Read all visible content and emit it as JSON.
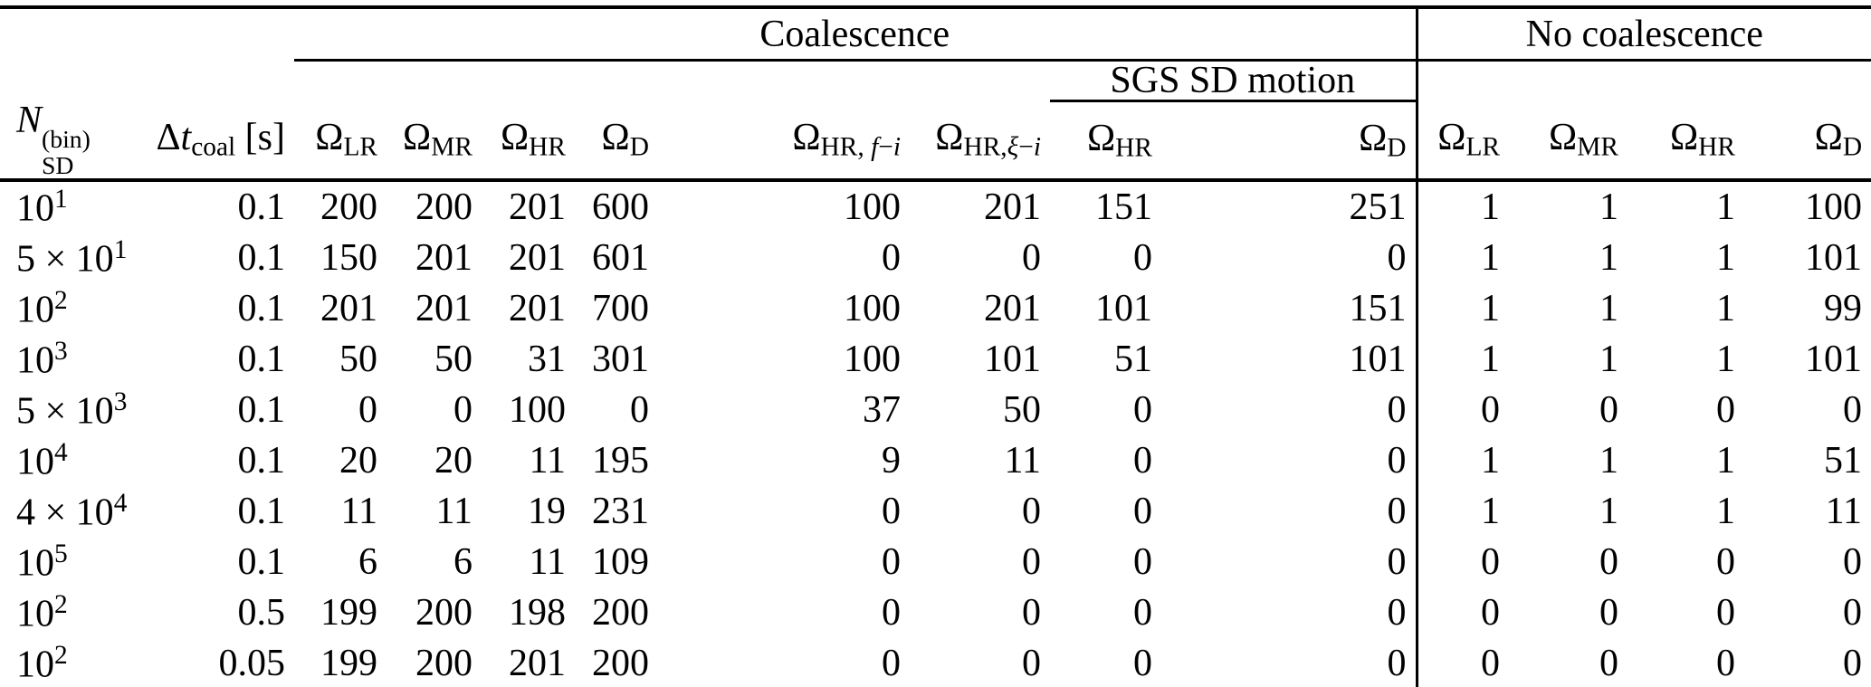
{
  "page": {
    "background": "#ffffff",
    "text_color": "#000000",
    "rule_color": "#000000"
  },
  "table": {
    "group_headers": {
      "coalescence": "Coalescence",
      "no_coalescence": "No coalescence",
      "sgs_sd_motion": "SGS SD motion"
    },
    "columns": [
      {
        "id": "nsd_bin",
        "type": "supsub",
        "base": "N",
        "base_italic": true,
        "sup": "(bin)",
        "sub": "SD",
        "align": "left"
      },
      {
        "id": "dt_coal",
        "segments": [
          {
            "t": "Δ"
          },
          {
            "t": "t",
            "it": true
          },
          {
            "t": "coal",
            "sub": true
          },
          {
            "t": " [s]"
          }
        ]
      },
      {
        "id": "omega_lr_coal",
        "segments": [
          {
            "t": "Ω"
          },
          {
            "t": "LR",
            "sub": true
          }
        ]
      },
      {
        "id": "omega_mr_coal",
        "segments": [
          {
            "t": "Ω"
          },
          {
            "t": "MR",
            "sub": true
          }
        ]
      },
      {
        "id": "omega_hr_coal",
        "segments": [
          {
            "t": "Ω"
          },
          {
            "t": "HR",
            "sub": true
          }
        ]
      },
      {
        "id": "omega_d_coal",
        "segments": [
          {
            "t": "Ω"
          },
          {
            "t": "D",
            "sub": true
          }
        ]
      },
      {
        "id": "omega_hr_f_i",
        "segments": [
          {
            "t": "Ω"
          },
          {
            "t": "HR, ",
            "sub": true
          },
          {
            "t": "f",
            "sub": true,
            "it": true
          },
          {
            "t": "−",
            "sub": true
          },
          {
            "t": "i",
            "sub": true,
            "it": true
          }
        ]
      },
      {
        "id": "omega_hr_xi_i",
        "segments": [
          {
            "t": "Ω"
          },
          {
            "t": "HR,",
            "sub": true
          },
          {
            "t": "ξ",
            "sub": true,
            "it": true
          },
          {
            "t": "−",
            "sub": true
          },
          {
            "t": "i",
            "sub": true,
            "it": true
          }
        ]
      },
      {
        "id": "omega_hr_sgs",
        "segments": [
          {
            "t": "Ω"
          },
          {
            "t": "HR",
            "sub": true
          }
        ]
      },
      {
        "id": "omega_d_sgs",
        "segments": [
          {
            "t": "Ω"
          },
          {
            "t": "D",
            "sub": true
          }
        ]
      },
      {
        "id": "omega_lr_nocoal",
        "segments": [
          {
            "t": "Ω"
          },
          {
            "t": "LR",
            "sub": true
          }
        ]
      },
      {
        "id": "omega_mr_nocoal",
        "segments": [
          {
            "t": "Ω"
          },
          {
            "t": "MR",
            "sub": true
          }
        ]
      },
      {
        "id": "omega_hr_nocoal",
        "segments": [
          {
            "t": "Ω"
          },
          {
            "t": "HR",
            "sub": true
          }
        ]
      },
      {
        "id": "omega_d_nocoal",
        "segments": [
          {
            "t": "Ω"
          },
          {
            "t": "D",
            "sub": true
          }
        ]
      }
    ],
    "rows": [
      {
        "label": [
          {
            "t": "10"
          },
          {
            "t": "1",
            "sup": true
          }
        ],
        "dt": "0.1",
        "values": [
          200,
          200,
          201,
          600,
          100,
          201,
          151,
          251,
          1,
          1,
          1,
          100
        ]
      },
      {
        "label": [
          {
            "t": "5 × 10"
          },
          {
            "t": "1",
            "sup": true
          }
        ],
        "dt": "0.1",
        "values": [
          150,
          201,
          201,
          601,
          0,
          0,
          0,
          0,
          1,
          1,
          1,
          101
        ]
      },
      {
        "label": [
          {
            "t": "10"
          },
          {
            "t": "2",
            "sup": true
          }
        ],
        "dt": "0.1",
        "values": [
          201,
          201,
          201,
          700,
          100,
          201,
          101,
          151,
          1,
          1,
          1,
          99
        ]
      },
      {
        "label": [
          {
            "t": "10"
          },
          {
            "t": "3",
            "sup": true
          }
        ],
        "dt": "0.1",
        "values": [
          50,
          50,
          31,
          301,
          100,
          101,
          51,
          101,
          1,
          1,
          1,
          101
        ]
      },
      {
        "label": [
          {
            "t": "5 × 10"
          },
          {
            "t": "3",
            "sup": true
          }
        ],
        "dt": "0.1",
        "values": [
          0,
          0,
          100,
          0,
          37,
          50,
          0,
          0,
          0,
          0,
          0,
          0
        ]
      },
      {
        "label": [
          {
            "t": "10"
          },
          {
            "t": "4",
            "sup": true
          }
        ],
        "dt": "0.1",
        "values": [
          20,
          20,
          11,
          195,
          9,
          11,
          0,
          0,
          1,
          1,
          1,
          51
        ]
      },
      {
        "label": [
          {
            "t": "4 × 10"
          },
          {
            "t": "4",
            "sup": true
          }
        ],
        "dt": "0.1",
        "values": [
          11,
          11,
          19,
          231,
          0,
          0,
          0,
          0,
          1,
          1,
          1,
          11
        ]
      },
      {
        "label": [
          {
            "t": "10"
          },
          {
            "t": "5",
            "sup": true
          }
        ],
        "dt": "0.1",
        "values": [
          6,
          6,
          11,
          109,
          0,
          0,
          0,
          0,
          0,
          0,
          0,
          0
        ]
      },
      {
        "label": [
          {
            "t": "10"
          },
          {
            "t": "2",
            "sup": true
          }
        ],
        "dt": "0.5",
        "values": [
          199,
          200,
          198,
          200,
          0,
          0,
          0,
          0,
          0,
          0,
          0,
          0
        ]
      },
      {
        "label": [
          {
            "t": "10"
          },
          {
            "t": "2",
            "sup": true
          }
        ],
        "dt": "0.05",
        "values": [
          199,
          200,
          201,
          200,
          0,
          0,
          0,
          0,
          0,
          0,
          0,
          0
        ]
      }
    ]
  }
}
